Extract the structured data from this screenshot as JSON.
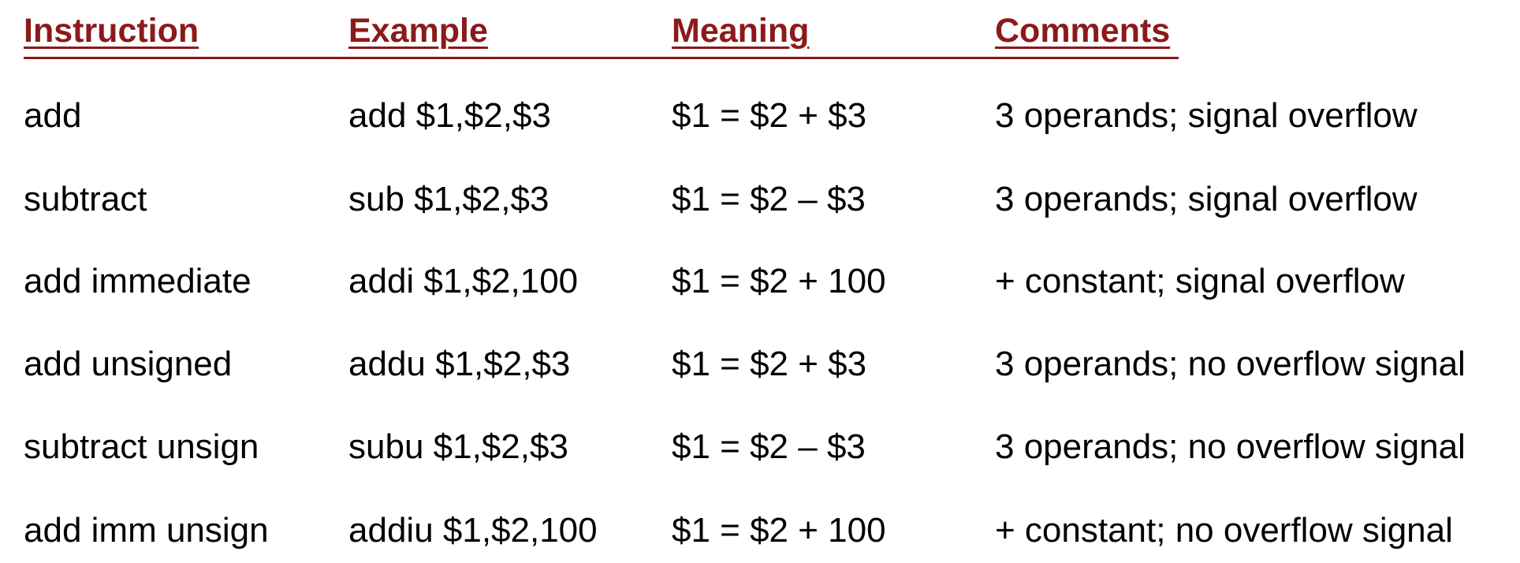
{
  "colors": {
    "header": "#8B1A1A",
    "text": "#000000",
    "background": "#ffffff"
  },
  "headers": {
    "instruction": "Instruction",
    "example": "Example",
    "meaning": "Meaning",
    "comments": "Comments"
  },
  "rows": [
    {
      "instruction": "add",
      "example": "add $1,$2,$3",
      "meaning": "$1 = $2 + $3",
      "comments": "3 operands; signal overflow"
    },
    {
      "instruction": "subtract",
      "example": "sub $1,$2,$3",
      "meaning": "$1 = $2 – $3",
      "comments": "3 operands; signal overflow"
    },
    {
      "instruction": "add immediate",
      "example": "addi $1,$2,100",
      "meaning": "$1 = $2 + 100",
      "comments": "+ constant; signal overflow"
    },
    {
      "instruction": "add unsigned",
      "example": "addu $1,$2,$3",
      "meaning": "$1 = $2 + $3",
      "comments": "3 operands; no overflow signal"
    },
    {
      "instruction": "subtract unsign",
      "example": "subu $1,$2,$3",
      "meaning": "$1 = $2 – $3",
      "comments": "3 operands; no overflow signal"
    },
    {
      "instruction": "add imm unsign",
      "example": "addiu $1,$2,100",
      "meaning": "$1 = $2 + 100",
      "comments": "+ constant; no overflow signal"
    }
  ]
}
